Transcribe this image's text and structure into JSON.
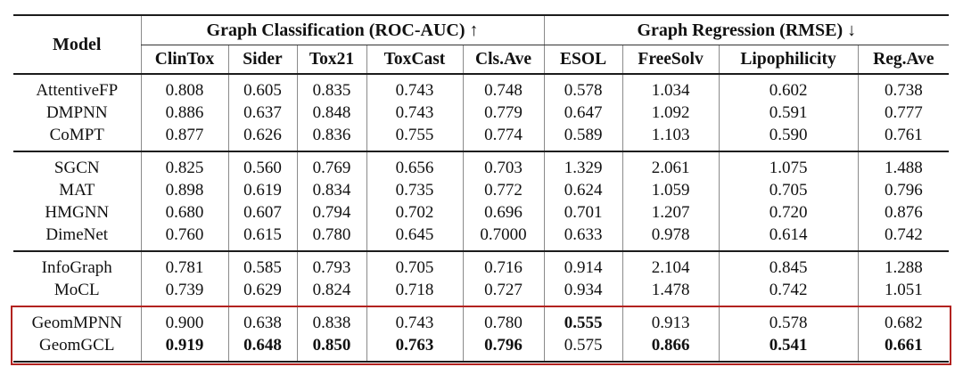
{
  "table": {
    "header": {
      "model_label": "Model",
      "groups": [
        {
          "label": "Graph Classification (ROC-AUC) ↑",
          "span": 5
        },
        {
          "label": "Graph Regression (RMSE) ↓",
          "span": 4
        }
      ],
      "columns": [
        "ClinTox",
        "Sider",
        "Tox21",
        "ToxCast",
        "Cls.Ave",
        "ESOL",
        "FreeSolv",
        "Lipophilicity",
        "Reg.Ave"
      ]
    },
    "row_groups": [
      {
        "highlighted": false,
        "rows": [
          {
            "model": "AttentiveFP",
            "values": [
              "0.808",
              "0.605",
              "0.835",
              "0.743",
              "0.748",
              "0.578",
              "1.034",
              "0.602",
              "0.738"
            ],
            "bold_indices": []
          },
          {
            "model": "DMPNN",
            "values": [
              "0.886",
              "0.637",
              "0.848",
              "0.743",
              "0.779",
              "0.647",
              "1.092",
              "0.591",
              "0.777"
            ],
            "bold_indices": []
          },
          {
            "model": "CoMPT",
            "values": [
              "0.877",
              "0.626",
              "0.836",
              "0.755",
              "0.774",
              "0.589",
              "1.103",
              "0.590",
              "0.761"
            ],
            "bold_indices": []
          }
        ]
      },
      {
        "highlighted": false,
        "rows": [
          {
            "model": "SGCN",
            "values": [
              "0.825",
              "0.560",
              "0.769",
              "0.656",
              "0.703",
              "1.329",
              "2.061",
              "1.075",
              "1.488"
            ],
            "bold_indices": []
          },
          {
            "model": "MAT",
            "values": [
              "0.898",
              "0.619",
              "0.834",
              "0.735",
              "0.772",
              "0.624",
              "1.059",
              "0.705",
              "0.796"
            ],
            "bold_indices": []
          },
          {
            "model": "HMGNN",
            "values": [
              "0.680",
              "0.607",
              "0.794",
              "0.702",
              "0.696",
              "0.701",
              "1.207",
              "0.720",
              "0.876"
            ],
            "bold_indices": []
          },
          {
            "model": "DimeNet",
            "values": [
              "0.760",
              "0.615",
              "0.780",
              "0.645",
              "0.7000",
              "0.633",
              "0.978",
              "0.614",
              "0.742"
            ],
            "bold_indices": []
          }
        ]
      },
      {
        "highlighted": false,
        "rows": [
          {
            "model": "InfoGraph",
            "values": [
              "0.781",
              "0.585",
              "0.793",
              "0.705",
              "0.716",
              "0.914",
              "2.104",
              "0.845",
              "1.288"
            ],
            "bold_indices": []
          },
          {
            "model": "MoCL",
            "values": [
              "0.739",
              "0.629",
              "0.824",
              "0.718",
              "0.727",
              "0.934",
              "1.478",
              "0.742",
              "1.051"
            ],
            "bold_indices": []
          }
        ]
      },
      {
        "highlighted": true,
        "rows": [
          {
            "model": "GeomMPNN",
            "values": [
              "0.900",
              "0.638",
              "0.838",
              "0.743",
              "0.780",
              "0.555",
              "0.913",
              "0.578",
              "0.682"
            ],
            "bold_indices": [
              5
            ]
          },
          {
            "model": "GeomGCL",
            "values": [
              "0.919",
              "0.648",
              "0.850",
              "0.763",
              "0.796",
              "0.575",
              "0.866",
              "0.541",
              "0.661"
            ],
            "bold_indices": [
              0,
              1,
              2,
              3,
              4,
              6,
              7,
              8
            ]
          }
        ]
      }
    ],
    "highlight_color": "#b2221f"
  }
}
